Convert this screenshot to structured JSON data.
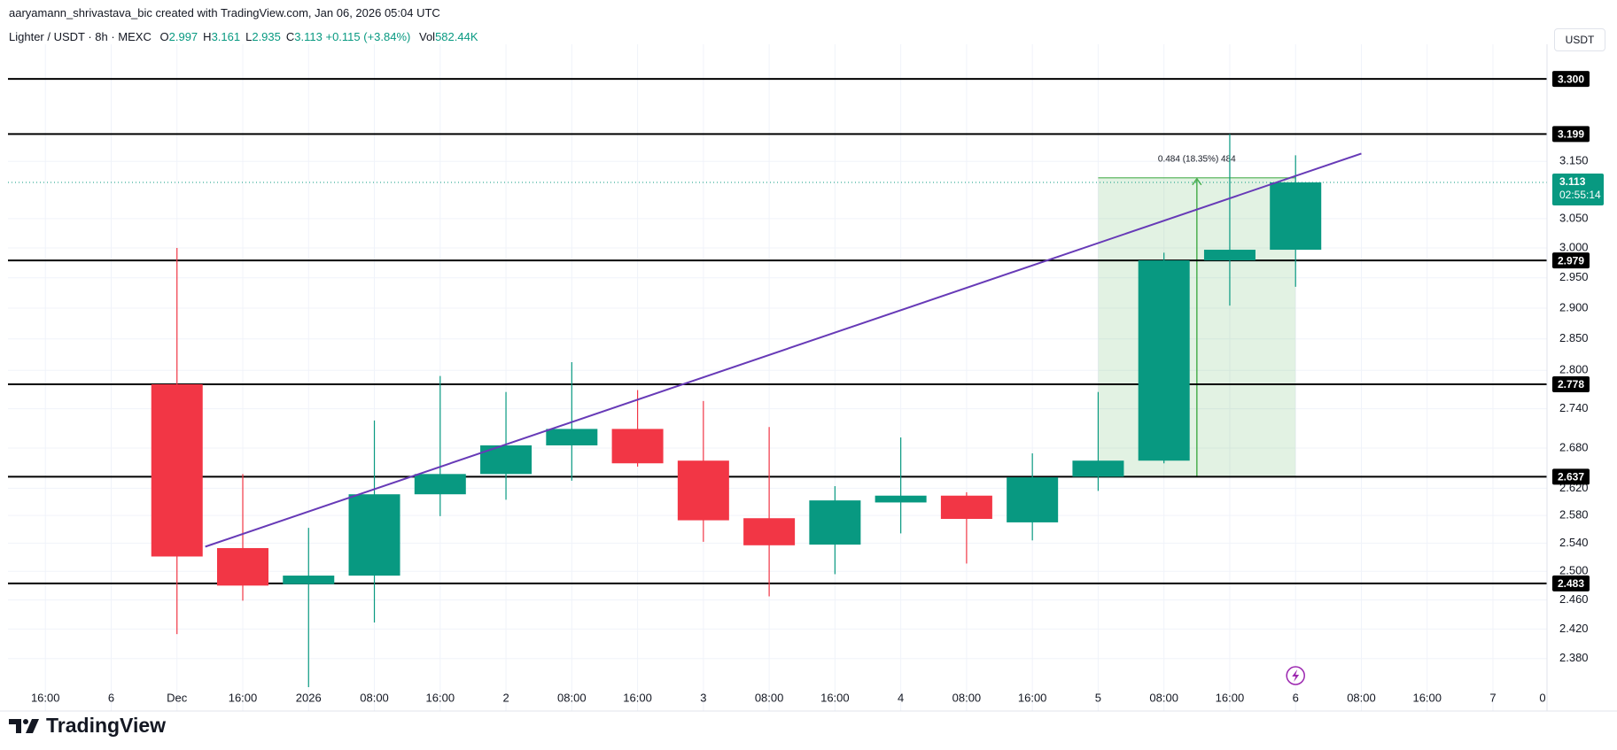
{
  "header": {
    "attribution": "aaryamann_shrivastava_bic created with TradingView.com, Jan 06, 2026 05:04 UTC",
    "symbol": "Lighter / USDT · 8h · MEXC",
    "quote": [
      {
        "key": "O",
        "value": 2.997
      },
      {
        "key": "H",
        "value": 3.161
      },
      {
        "key": "L",
        "value": 2.935
      },
      {
        "key": "C",
        "value": 3.113
      }
    ],
    "change": "+0.115 (+3.84%)",
    "volume": {
      "key": "Vol",
      "value": {
        "value": 582440,
        "label": "582.44K"
      }
    },
    "currency": "USDT"
  },
  "chart_data": {
    "type": "candlestick",
    "log_scale": true,
    "grid": true,
    "categories": [
      "16:00",
      "6",
      "Dec",
      "16:00",
      "2026",
      "08:00",
      "16:00",
      "2",
      "08:00",
      "16:00",
      "3",
      "08:00",
      "16:00",
      "4",
      "08:00",
      "16:00",
      "5",
      "08:00",
      "16:00",
      "6",
      "08:00",
      "16:00",
      "7",
      "0"
    ],
    "open": [
      null,
      null,
      2.778,
      2.533,
      2.482,
      2.494,
      2.611,
      2.641,
      2.684,
      2.709,
      2.661,
      2.576,
      2.538,
      2.599,
      2.609,
      2.57,
      2.637,
      2.661,
      2.979,
      2.997,
      null,
      null,
      null,
      null
    ],
    "high": [
      null,
      null,
      3.0,
      2.641,
      2.562,
      2.722,
      2.791,
      2.766,
      2.813,
      2.769,
      2.752,
      2.712,
      2.623,
      2.696,
      2.614,
      2.672,
      2.766,
      2.992,
      3.199,
      3.161,
      null,
      null,
      null,
      null
    ],
    "low": [
      null,
      null,
      2.413,
      2.459,
      2.342,
      2.429,
      2.579,
      2.603,
      2.631,
      2.652,
      2.542,
      2.465,
      2.496,
      2.554,
      2.511,
      2.544,
      2.616,
      2.657,
      2.904,
      2.935,
      null,
      null,
      null,
      null
    ],
    "close": [
      null,
      null,
      2.521,
      2.48,
      2.494,
      2.611,
      2.641,
      2.684,
      2.709,
      2.657,
      2.573,
      2.537,
      2.602,
      2.609,
      2.575,
      2.636,
      2.661,
      2.979,
      2.997,
      3.113,
      null,
      null,
      null,
      null
    ],
    "up_color": "#089981",
    "down_color": "#f23645",
    "ylim": [
      2.342,
      3.35
    ],
    "yticks": [
      {
        "value": 2.38,
        "label": "2.380"
      },
      {
        "value": 2.42,
        "label": "2.420"
      },
      {
        "value": 2.46,
        "label": "2.460"
      },
      {
        "value": 2.5,
        "label": "2.500"
      },
      {
        "value": 2.54,
        "label": "2.540"
      },
      {
        "value": 2.58,
        "label": "2.580"
      },
      {
        "value": 2.62,
        "label": "2.620"
      },
      {
        "value": 2.68,
        "label": "2.680"
      },
      {
        "value": 2.74,
        "label": "2.740"
      },
      {
        "value": 2.8,
        "label": "2.800"
      },
      {
        "value": 2.85,
        "label": "2.850"
      },
      {
        "value": 2.9,
        "label": "2.900"
      },
      {
        "value": 2.95,
        "label": "2.950"
      },
      {
        "value": 3.0,
        "label": "3.000"
      },
      {
        "value": 3.05,
        "label": "3.050"
      },
      {
        "value": 3.15,
        "label": "3.150"
      }
    ],
    "levels": [
      {
        "value": 3.3,
        "label": "3.300"
      },
      3.199,
      2.979,
      2.778,
      2.637,
      2.483
    ],
    "level_color": "#000000",
    "last_price": {
      "value": 3.113,
      "countdown": "02:55:14",
      "color": "#089981"
    },
    "trendline": {
      "from": [
        2.43,
        2.535
      ],
      "to": [
        20,
        3.164
      ],
      "color": "#673ab7"
    },
    "measure": {
      "label": "0.484 (18.35%) 484",
      "from": 16,
      "to": 19,
      "low": 2.637,
      "high": 3.121,
      "color": "#4caf50"
    }
  },
  "footer": {
    "logo": "TradingView"
  }
}
